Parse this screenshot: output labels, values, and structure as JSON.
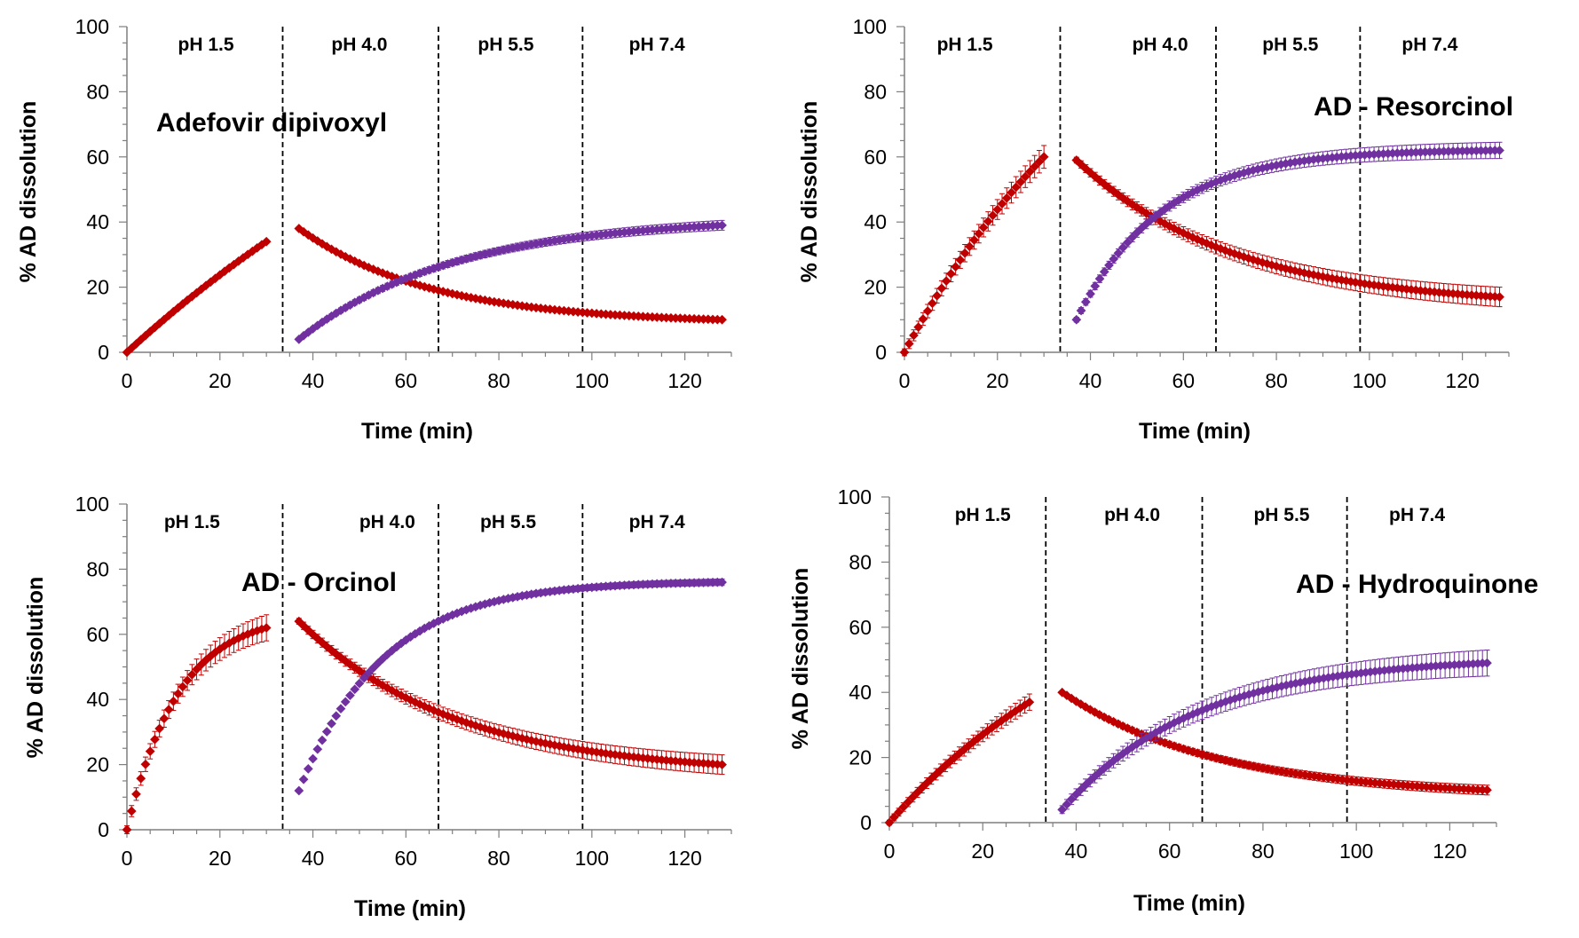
{
  "chart_data": [
    {
      "type": "scatter",
      "annotation": "Adefovir dipivoxyl",
      "xlabel": "Time (min)",
      "ylabel": "% AD dissolution",
      "xlim": [
        0,
        130
      ],
      "ylim": [
        0,
        100
      ],
      "xticks": [
        0,
        20,
        40,
        60,
        80,
        100,
        120
      ],
      "yticks": [
        0,
        20,
        40,
        60,
        80,
        100
      ],
      "phase_boundaries": [
        33.5,
        67,
        98
      ],
      "phase_labels": [
        {
          "text": "pH 1.5",
          "x": 17
        },
        {
          "text": "pH 4.0",
          "x": 50
        },
        {
          "text": "pH 5.5",
          "x": 81.5
        },
        {
          "text": "pH 7.4",
          "x": 114
        }
      ],
      "series": [
        {
          "color": "#c00000",
          "segments": [
            {
              "x0": 0,
              "x1": 30,
              "y": [
                0,
                34
              ],
              "model": "rise",
              "k": 0.01,
              "err": 0.6
            },
            {
              "x0": 37,
              "x1": 128,
              "y": [
                38,
                10
              ],
              "model": "decay",
              "k": 0.035,
              "err": 0.5
            }
          ]
        },
        {
          "color": "#7030a0",
          "segments": [
            {
              "x0": 37,
              "x1": 128,
              "y": [
                4,
                39
              ],
              "model": "rise",
              "k": 0.03,
              "err": 1.5
            }
          ]
        }
      ]
    },
    {
      "type": "scatter",
      "annotation": "AD - Resorcinol",
      "xlabel": "Time (min)",
      "ylabel": "% AD dissolution",
      "xlim": [
        0,
        130
      ],
      "ylim": [
        0,
        100
      ],
      "xticks": [
        0,
        20,
        40,
        60,
        80,
        100,
        120
      ],
      "yticks": [
        0,
        20,
        40,
        60,
        80,
        100
      ],
      "phase_boundaries": [
        33.5,
        67,
        98
      ],
      "phase_labels": [
        {
          "text": "pH 1.5",
          "x": 13
        },
        {
          "text": "pH 4.0",
          "x": 55
        },
        {
          "text": "pH 5.5",
          "x": 83
        },
        {
          "text": "pH 7.4",
          "x": 113
        }
      ],
      "series": [
        {
          "color": "#c00000",
          "segments": [
            {
              "x0": 0,
              "x1": 30,
              "y": [
                0,
                60
              ],
              "model": "rise",
              "k": 0.02,
              "err": 3.5
            },
            {
              "x0": 37,
              "x1": 128,
              "y": [
                59,
                17
              ],
              "model": "decay",
              "k": 0.03,
              "err": 3
            }
          ]
        },
        {
          "color": "#7030a0",
          "segments": [
            {
              "x0": 37,
              "x1": 128,
              "y": [
                10,
                62
              ],
              "model": "rise",
              "k": 0.055,
              "err": 2.5
            }
          ]
        }
      ]
    },
    {
      "type": "scatter",
      "annotation": "AD - Orcinol",
      "xlabel": "Time (min)",
      "ylabel": "% AD dissolution",
      "xlim": [
        0,
        130
      ],
      "ylim": [
        0,
        100
      ],
      "xticks": [
        0,
        20,
        40,
        60,
        80,
        100,
        120
      ],
      "yticks": [
        0,
        20,
        40,
        60,
        80,
        100
      ],
      "phase_boundaries": [
        33.5,
        67,
        98
      ],
      "phase_labels": [
        {
          "text": "pH 1.5",
          "x": 14
        },
        {
          "text": "pH 4.0",
          "x": 56
        },
        {
          "text": "pH 5.5",
          "x": 82
        },
        {
          "text": "pH 7.4",
          "x": 114
        }
      ],
      "series": [
        {
          "color": "#c00000",
          "segments": [
            {
              "x0": 0,
              "x1": 30,
              "y": [
                0,
                62
              ],
              "model": "rise",
              "k": 0.09,
              "err": 4
            },
            {
              "x0": 37,
              "x1": 128,
              "y": [
                64,
                20
              ],
              "model": "decay",
              "k": 0.03,
              "err": 3
            }
          ]
        },
        {
          "color": "#7030a0",
          "segments": [
            {
              "x0": 37,
              "x1": 128,
              "y": [
                12,
                76
              ],
              "model": "rise",
              "k": 0.055,
              "err": 1
            }
          ]
        }
      ]
    },
    {
      "type": "scatter",
      "annotation": "AD - Hydroquinone",
      "xlabel": "Time (min)",
      "ylabel": "% AD dissolution",
      "xlim": [
        0,
        130
      ],
      "ylim": [
        0,
        100
      ],
      "xticks": [
        0,
        20,
        40,
        60,
        80,
        100,
        120
      ],
      "yticks": [
        0,
        20,
        40,
        60,
        80,
        100
      ],
      "phase_boundaries": [
        33.5,
        67,
        98
      ],
      "phase_labels": [
        {
          "text": "pH 1.5",
          "x": 20
        },
        {
          "text": "pH 4.0",
          "x": 52
        },
        {
          "text": "pH 5.5",
          "x": 84
        },
        {
          "text": "pH 7.4",
          "x": 113
        }
      ],
      "series": [
        {
          "color": "#c00000",
          "segments": [
            {
              "x0": 0,
              "x1": 30,
              "y": [
                0,
                37
              ],
              "model": "rise",
              "k": 0.02,
              "err": 2.5
            },
            {
              "x0": 37,
              "x1": 128,
              "y": [
                40,
                10
              ],
              "model": "decay",
              "k": 0.03,
              "err": 1.5
            }
          ]
        },
        {
          "color": "#7030a0",
          "segments": [
            {
              "x0": 37,
              "x1": 128,
              "y": [
                4,
                49
              ],
              "model": "rise",
              "k": 0.035,
              "err": 4
            }
          ]
        }
      ]
    }
  ]
}
